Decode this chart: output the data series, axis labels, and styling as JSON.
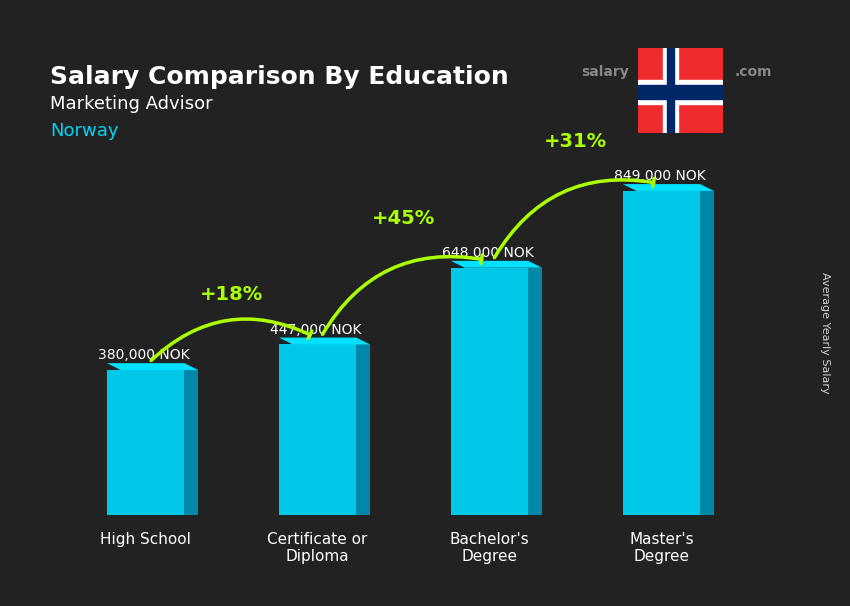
{
  "title": "Salary Comparison By Education",
  "subtitle": "Marketing Advisor",
  "country": "Norway",
  "categories": [
    "High School",
    "Certificate or\nDiploma",
    "Bachelor's\nDegree",
    "Master's\nDegree"
  ],
  "values": [
    380000,
    447000,
    648000,
    849000
  ],
  "labels": [
    "380,000 NOK",
    "447,000 NOK",
    "648,000 NOK",
    "849,000 NOK"
  ],
  "pct_labels": [
    "+18%",
    "+45%",
    "+31%"
  ],
  "bar_color_top": "#00d4f5",
  "bar_color_side": "#0099bb",
  "bar_color_front": "#00bcd4",
  "background_color": "#1a1a2e",
  "title_color": "#ffffff",
  "subtitle_color": "#ffffff",
  "country_color": "#00d4f5",
  "label_color": "#ffffff",
  "pct_color": "#aaff00",
  "axis_label_color": "#ffffff",
  "site_color_salary": "#555555",
  "site_color_explorer": "#00aaff",
  "ylim": [
    0,
    1000000
  ]
}
